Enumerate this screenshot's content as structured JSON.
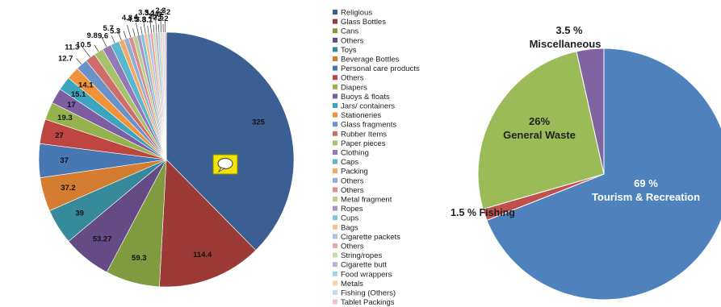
{
  "chart_data": [
    {
      "type": "pie",
      "title": "",
      "slices": [
        {
          "label": "Religious",
          "value": 325,
          "color": "#3b5f93"
        },
        {
          "label": "Glass Bottles",
          "value": 114.4,
          "color": "#9c3a36"
        },
        {
          "label": "Cans",
          "value": 59.3,
          "color": "#7f9a3f"
        },
        {
          "label": "Others",
          "value": 53.27,
          "color": "#644b86"
        },
        {
          "label": "Toys",
          "value": 39,
          "color": "#368a9c"
        },
        {
          "label": "Beverage Bottles",
          "value": 37.2,
          "color": "#d47d30"
        },
        {
          "label": "Personal care products",
          "value": 37,
          "color": "#4778b3"
        },
        {
          "label": "Others",
          "value": 27,
          "color": "#bf4541"
        },
        {
          "label": "Diapers",
          "value": 19.3,
          "color": "#95b24f"
        },
        {
          "label": "Buoys & floats",
          "value": 17,
          "color": "#7d5ea3"
        },
        {
          "label": "Jars/ containers",
          "value": 15.1,
          "color": "#3ba5bd"
        },
        {
          "label": "Stationeries",
          "value": 14.1,
          "color": "#f0923a"
        },
        {
          "label": "Glass fragments",
          "value": 12.7,
          "color": "#6a93c9"
        },
        {
          "label": "Rubber Items",
          "value": 11.3,
          "color": "#cf6d6b"
        },
        {
          "label": "Paper pieces",
          "value": 10.5,
          "color": "#a7c16c"
        },
        {
          "label": "Clothing",
          "value": 9.8,
          "color": "#9379b5"
        },
        {
          "label": "Caps",
          "value": 9.6,
          "color": "#5cb7cc"
        },
        {
          "label": "Packing",
          "value": 5.7,
          "color": "#f3a966"
        },
        {
          "label": "Others",
          "value": 5.3,
          "color": "#91aed6"
        },
        {
          "label": "Others",
          "value": 4.8,
          "color": "#d88f8e"
        },
        {
          "label": "Metal fragment",
          "value": 4.5,
          "color": "#bad18e"
        },
        {
          "label": "Ropes",
          "value": 4,
          "color": "#a995c5"
        },
        {
          "label": "Cups",
          "value": 3.8,
          "color": "#80c6d8"
        },
        {
          "label": "Bags",
          "value": 3.5,
          "color": "#f7bf8d"
        },
        {
          "label": "Cigarette packets",
          "value": 3.1,
          "color": "#adc3e1"
        },
        {
          "label": "Others",
          "value": 3.1,
          "color": "#e1aeae"
        },
        {
          "label": "String/ropes",
          "value": 2.7,
          "color": "#c9dcae"
        },
        {
          "label": "Cigarette butt",
          "value": 2.6,
          "color": "#c1b2d5"
        },
        {
          "label": "Food wrappers",
          "value": 2.5,
          "color": "#a4d5e3"
        },
        {
          "label": "Metals",
          "value": 2.3,
          "color": "#f9d0ab"
        },
        {
          "label": "Fishing (Others)",
          "value": 2.2,
          "color": "#c8d7eb"
        },
        {
          "label": "Tablet Packings",
          "value": 2.2,
          "color": "#ebc8c8"
        }
      ],
      "legend_position": "right"
    },
    {
      "type": "pie",
      "title": "",
      "slices": [
        {
          "label": "Tourism & Recreation",
          "value": 69,
          "display": "69 %",
          "color": "#4f81bd"
        },
        {
          "label": "Fishing",
          "value": 1.5,
          "display": "1.5 % Fishing",
          "color": "#c0504d"
        },
        {
          "label": "General Waste",
          "value": 26,
          "display": "26%",
          "color": "#9bbb59"
        },
        {
          "label": "Miscellaneous",
          "value": 3.5,
          "display": "3.5 %",
          "color": "#8064a2"
        }
      ]
    }
  ]
}
